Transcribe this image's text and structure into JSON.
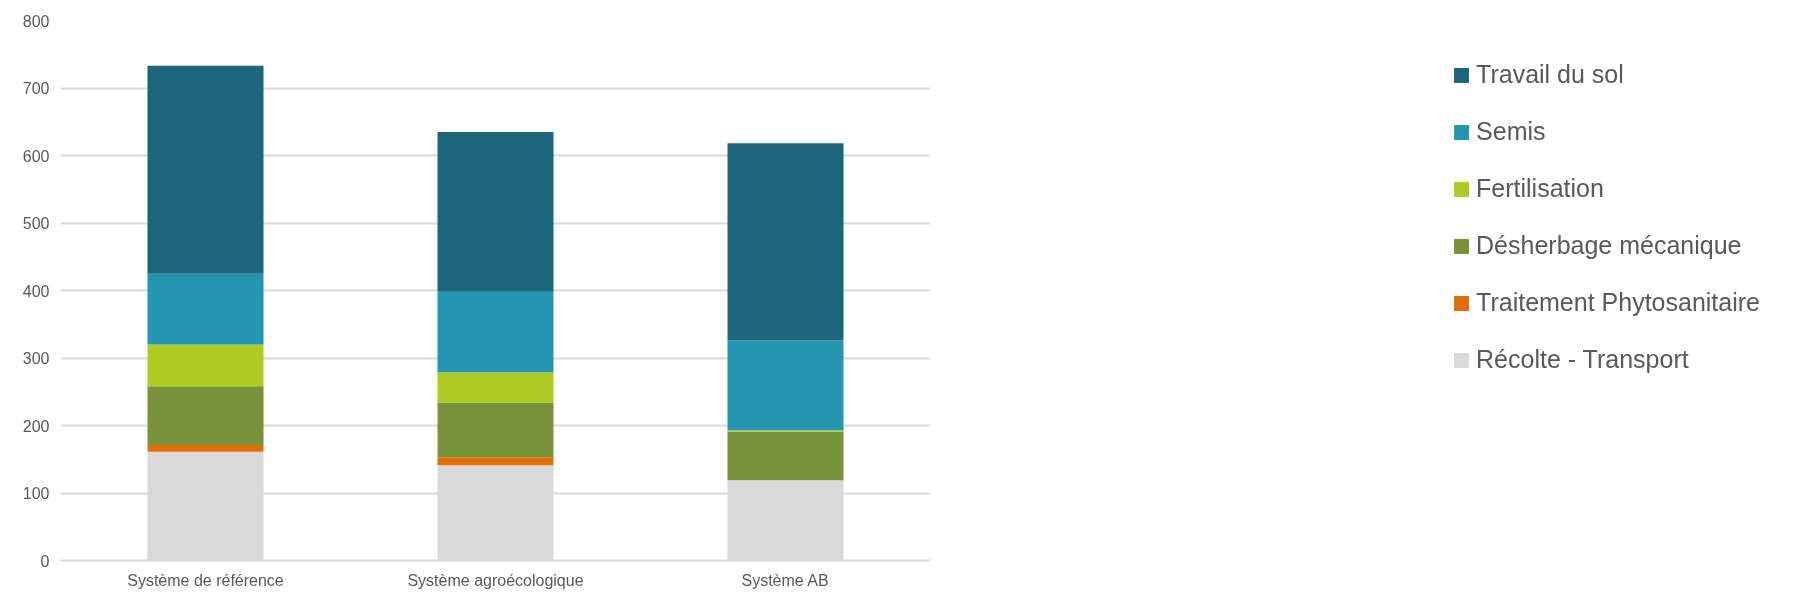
{
  "chart_data": {
    "type": "bar",
    "stacked": true,
    "categories": [
      "Système de référence",
      "Système agroécologique",
      "Système AB"
    ],
    "series": [
      {
        "name": "Récolte - Transport",
        "color": "#d9d9d9",
        "values": [
          161,
          141,
          119
        ]
      },
      {
        "name": "Traitement Phytosanitaire",
        "color": "#e36c0a",
        "values": [
          10,
          12,
          0
        ]
      },
      {
        "name": "Désherbage mécanique",
        "color": "#78923a",
        "values": [
          87,
          81,
          72
        ]
      },
      {
        "name": "Fertilisation",
        "color": "#afca22",
        "values": [
          62,
          45,
          2
        ]
      },
      {
        "name": "Semis",
        "color": "#2596b1",
        "values": [
          105,
          119,
          133
        ]
      },
      {
        "name": "Travail du sol",
        "color": "#1b6678",
        "values": [
          308,
          237,
          292
        ]
      }
    ],
    "ylim": [
      0,
      800
    ],
    "yticks": [
      0,
      100,
      200,
      300,
      400,
      500,
      600,
      700,
      800
    ],
    "grid": "y",
    "legend": "right"
  }
}
